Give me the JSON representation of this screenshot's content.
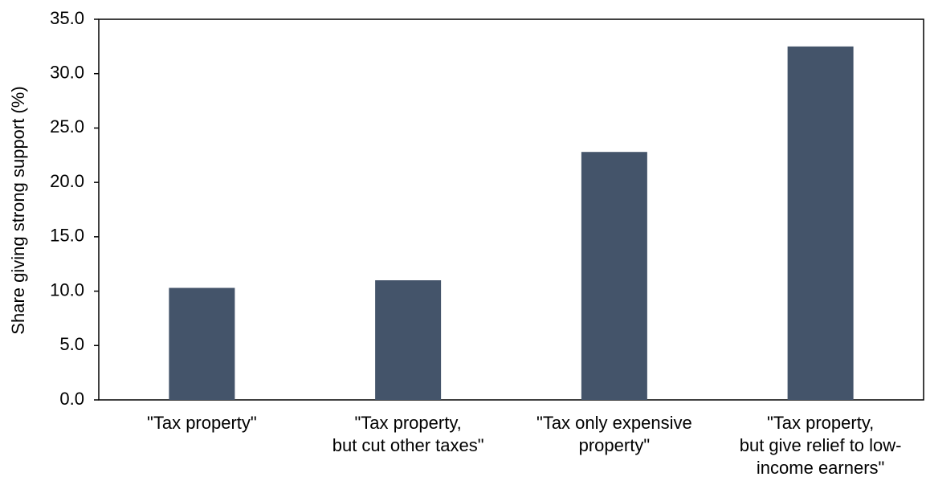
{
  "chart_data": {
    "type": "bar",
    "y_label": "Share giving strong support (%)",
    "categories": [
      [
        "\"Tax property\""
      ],
      [
        "\"Tax property,",
        "but cut other taxes\""
      ],
      [
        "\"Tax only expensive",
        "property\""
      ],
      [
        "\"Tax property,",
        "but give relief to low-",
        "income earners\""
      ]
    ],
    "values": [
      10.3,
      11.0,
      22.8,
      32.5
    ],
    "color": "#44546a",
    "ylim": [
      0,
      35
    ],
    "yticks": [
      {
        "value": 0,
        "label": "0.0"
      },
      {
        "value": 5,
        "label": "5.0"
      },
      {
        "value": 10,
        "label": "10.0"
      },
      {
        "value": 15,
        "label": "15.0"
      },
      {
        "value": 20,
        "label": "20.0"
      },
      {
        "value": 25,
        "label": "25.0"
      },
      {
        "value": 30,
        "label": "30.0"
      },
      {
        "value": 35,
        "label": "35.0"
      }
    ],
    "grid": false
  }
}
